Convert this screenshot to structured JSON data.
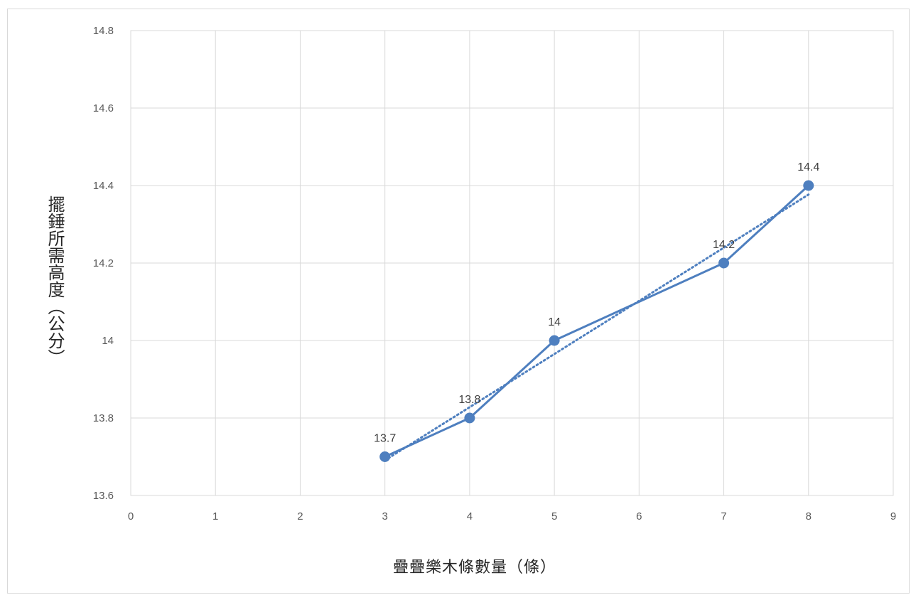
{
  "chart_data": {
    "type": "line",
    "xlabel": "疊疊樂木條數量（條）",
    "ylabel": "擺錘所需高度（公分）",
    "xlim": [
      0,
      9
    ],
    "ylim": [
      13.6,
      14.8
    ],
    "x_ticks": [
      "0",
      "1",
      "2",
      "3",
      "4",
      "5",
      "6",
      "7",
      "8",
      "9"
    ],
    "y_ticks": [
      "13.6",
      "13.8",
      "14",
      "14.2",
      "14.4",
      "14.6",
      "14.8"
    ],
    "grid": true,
    "series": [
      {
        "x": [
          3,
          4,
          5,
          7,
          8
        ],
        "values": [
          13.7,
          13.8,
          14,
          14.2,
          14.4
        ],
        "data_labels": [
          "13.7",
          "13.8",
          "14",
          "14.2",
          "14.4"
        ],
        "color": "#4e7fbf",
        "marker": "circle"
      }
    ],
    "trendline": {
      "type": "linear",
      "style": "dotted",
      "color": "#4e7fbf"
    }
  }
}
